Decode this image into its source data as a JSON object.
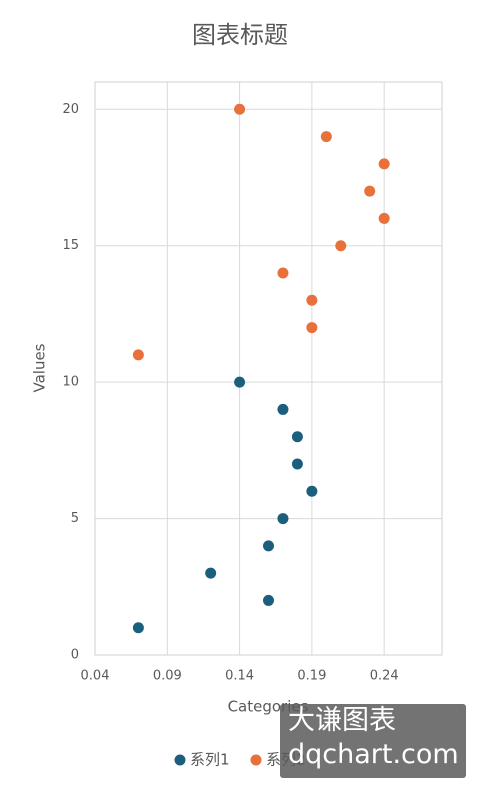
{
  "chart_data": {
    "type": "scatter",
    "title": "图表标题",
    "x_label": "Categories",
    "y_label": "Values",
    "xlim": [
      0.04,
      0.28
    ],
    "xticks": [
      0.04,
      0.09,
      0.14,
      0.19,
      0.24
    ],
    "ylim": [
      0,
      21
    ],
    "yticks": [
      0,
      5,
      10,
      15,
      20
    ],
    "grid": true,
    "legend": "bottom",
    "series": [
      {
        "name": "系列1",
        "color": "#1b5e7e",
        "x": [
          0.07,
          0.16,
          0.12,
          0.16,
          0.17,
          0.19,
          0.18,
          0.18,
          0.17,
          0.14
        ],
        "values": [
          1,
          2,
          3,
          4,
          5,
          6,
          7,
          8,
          9,
          10
        ]
      },
      {
        "name": "系列2",
        "color": "#e8703a",
        "x": [
          0.07,
          0.19,
          0.19,
          0.17,
          0.21,
          0.24,
          0.23,
          0.24,
          0.2,
          0.14
        ],
        "values": [
          11,
          12,
          13,
          14,
          15,
          16,
          17,
          18,
          19,
          20
        ]
      }
    ]
  },
  "watermark": {
    "line1": "大谦图表",
    "line2": "dqchart.com"
  }
}
